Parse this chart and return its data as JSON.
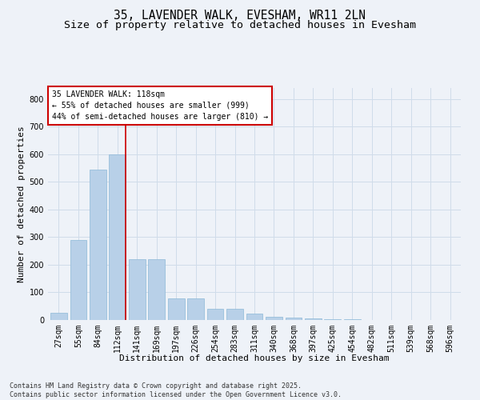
{
  "title": "35, LAVENDER WALK, EVESHAM, WR11 2LN",
  "subtitle": "Size of property relative to detached houses in Evesham",
  "xlabel": "Distribution of detached houses by size in Evesham",
  "ylabel": "Number of detached properties",
  "categories": [
    "27sqm",
    "55sqm",
    "84sqm",
    "112sqm",
    "141sqm",
    "169sqm",
    "197sqm",
    "226sqm",
    "254sqm",
    "283sqm",
    "311sqm",
    "340sqm",
    "368sqm",
    "397sqm",
    "425sqm",
    "454sqm",
    "482sqm",
    "511sqm",
    "539sqm",
    "568sqm",
    "596sqm"
  ],
  "values": [
    25,
    290,
    545,
    600,
    220,
    220,
    78,
    78,
    42,
    42,
    22,
    12,
    8,
    5,
    3,
    2,
    1,
    0,
    0,
    0,
    0
  ],
  "bar_color": "#b8d0e8",
  "bar_edge_color": "#8db8d8",
  "grid_color": "#d0dcea",
  "background_color": "#eef2f8",
  "vline_color": "#cc0000",
  "vline_pos": 3.43,
  "annotation_text": "35 LAVENDER WALK: 118sqm\n← 55% of detached houses are smaller (999)\n44% of semi-detached houses are larger (810) →",
  "annotation_box_facecolor": "#ffffff",
  "annotation_box_edgecolor": "#cc0000",
  "ylim": [
    0,
    840
  ],
  "yticks": [
    0,
    100,
    200,
    300,
    400,
    500,
    600,
    700,
    800
  ],
  "footnote": "Contains HM Land Registry data © Crown copyright and database right 2025.\nContains public sector information licensed under the Open Government Licence v3.0.",
  "title_fontsize": 10.5,
  "subtitle_fontsize": 9.5,
  "axis_label_fontsize": 8,
  "tick_fontsize": 7,
  "annotation_fontsize": 7,
  "footnote_fontsize": 6
}
